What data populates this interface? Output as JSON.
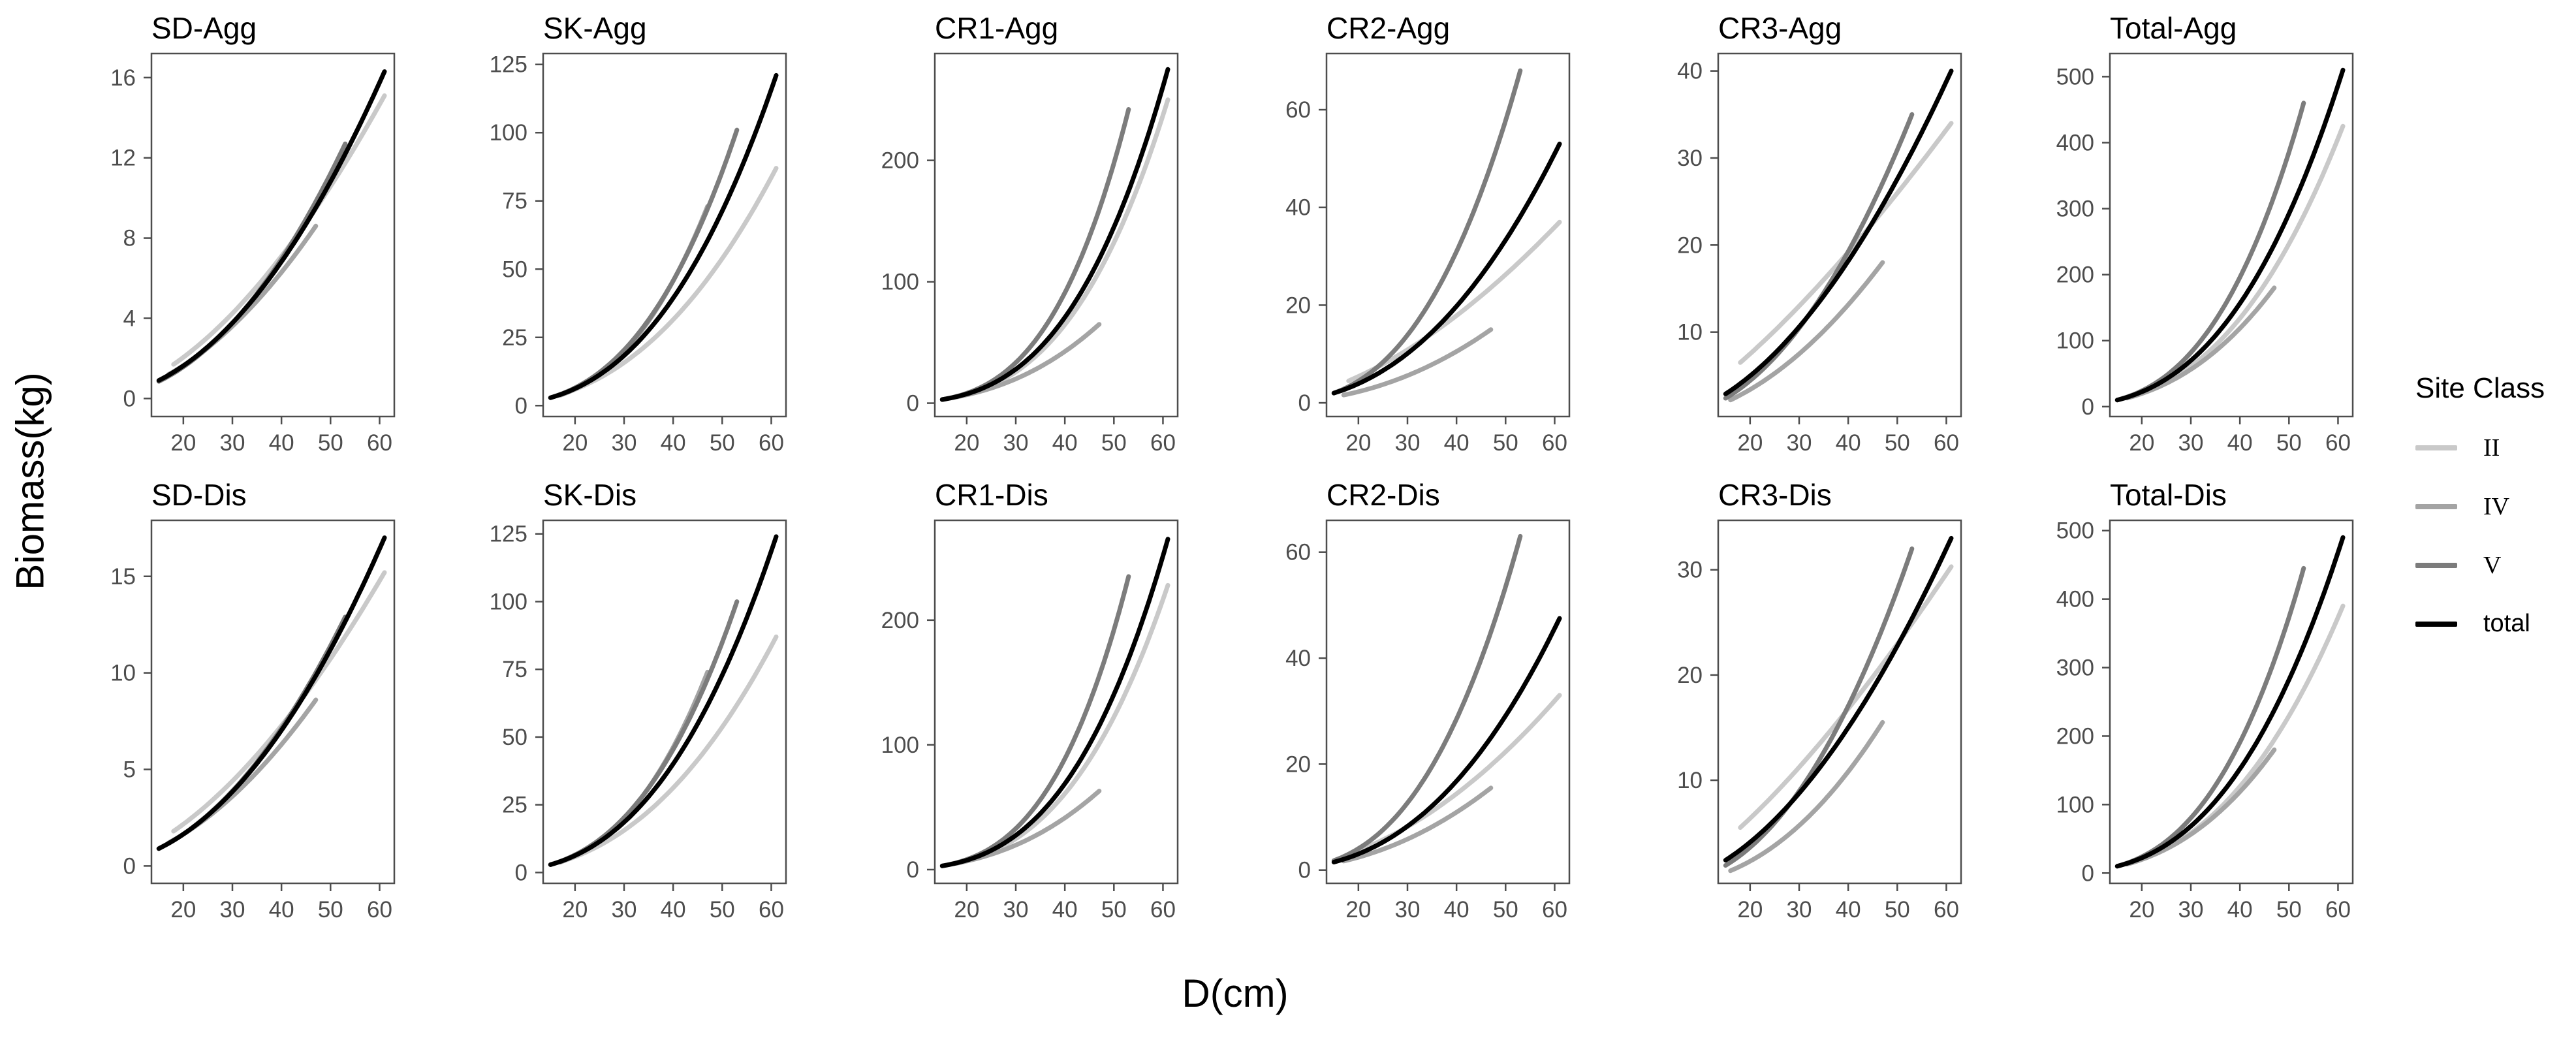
{
  "figure": {
    "y_axis_label": "Biomass(kg)",
    "x_axis_label": "D(cm)",
    "background": "#ffffff",
    "border_color": "#4d4d4d",
    "tick_label_color": "#4d4d4d"
  },
  "legend": {
    "title": "Site Class",
    "position": "right",
    "items": [
      {
        "label": "II",
        "color": "#c9c9c9"
      },
      {
        "label": "IV",
        "color": "#a4a4a4"
      },
      {
        "label": "V",
        "color": "#7c7c7c"
      },
      {
        "label": "total",
        "color": "#000000"
      }
    ]
  },
  "axes": {
    "x_ticks": [
      20,
      30,
      40,
      50,
      60
    ],
    "xlim": [
      13.5,
      63
    ],
    "grid": "off"
  },
  "chart_data": [
    {
      "title": "SD-Agg",
      "type": "line",
      "row": 0,
      "y_ticks": [
        0,
        4,
        8,
        12,
        16
      ],
      "ylim": [
        -0.9,
        17.2
      ],
      "series": [
        {
          "name": "II",
          "x": [
            18,
            61
          ],
          "y": [
            1.7,
            15.1
          ]
        },
        {
          "name": "IV",
          "x": [
            17,
            47
          ],
          "y": [
            1.2,
            8.6
          ]
        },
        {
          "name": "V",
          "x": [
            15,
            53
          ],
          "y": [
            0.85,
            12.7
          ]
        },
        {
          "name": "total",
          "x": [
            15,
            61
          ],
          "y": [
            0.9,
            16.3
          ]
        }
      ]
    },
    {
      "title": "SK-Agg",
      "type": "line",
      "row": 0,
      "y_ticks": [
        0,
        25,
        50,
        75,
        100,
        125
      ],
      "ylim": [
        -4,
        129
      ],
      "series": [
        {
          "name": "II",
          "x": [
            18,
            61
          ],
          "y": [
            4.6,
            87
          ]
        },
        {
          "name": "IV",
          "x": [
            17,
            47
          ],
          "y": [
            3.8,
            73
          ]
        },
        {
          "name": "V",
          "x": [
            15,
            53
          ],
          "y": [
            2.9,
            101
          ]
        },
        {
          "name": "total",
          "x": [
            15,
            61
          ],
          "y": [
            2.9,
            121
          ]
        }
      ]
    },
    {
      "title": "CR1-Agg",
      "type": "line",
      "row": 0,
      "y_ticks": [
        0,
        100,
        200
      ],
      "ylim": [
        -11,
        288
      ],
      "series": [
        {
          "name": "II",
          "x": [
            18,
            61
          ],
          "y": [
            5,
            250
          ]
        },
        {
          "name": "IV",
          "x": [
            17,
            47
          ],
          "y": [
            4.5,
            65
          ]
        },
        {
          "name": "V",
          "x": [
            15,
            53
          ],
          "y": [
            3,
            242
          ]
        },
        {
          "name": "total",
          "x": [
            15,
            61
          ],
          "y": [
            3,
            275
          ]
        }
      ]
    },
    {
      "title": "CR2-Agg",
      "type": "line",
      "row": 0,
      "y_ticks": [
        0,
        20,
        40,
        60
      ],
      "ylim": [
        -2.8,
        71.5
      ],
      "series": [
        {
          "name": "II",
          "x": [
            18,
            61
          ],
          "y": [
            4.5,
            37
          ]
        },
        {
          "name": "IV",
          "x": [
            17,
            47
          ],
          "y": [
            1.6,
            15
          ]
        },
        {
          "name": "V",
          "x": [
            15,
            53
          ],
          "y": [
            2,
            68
          ]
        },
        {
          "name": "total",
          "x": [
            15,
            61
          ],
          "y": [
            2,
            53
          ]
        }
      ]
    },
    {
      "title": "CR3-Agg",
      "type": "line",
      "row": 0,
      "y_ticks": [
        10,
        20,
        30,
        40
      ],
      "ylim": [
        0.3,
        42
      ],
      "series": [
        {
          "name": "II",
          "x": [
            18,
            61
          ],
          "y": [
            6.5,
            34
          ]
        },
        {
          "name": "IV",
          "x": [
            16,
            47
          ],
          "y": [
            2.2,
            18
          ]
        },
        {
          "name": "V",
          "x": [
            15,
            53
          ],
          "y": [
            2.4,
            35
          ]
        },
        {
          "name": "total",
          "x": [
            15,
            61
          ],
          "y": [
            2.9,
            40
          ]
        }
      ]
    },
    {
      "title": "Total-Agg",
      "type": "line",
      "row": 0,
      "y_ticks": [
        0,
        100,
        200,
        300,
        400,
        500
      ],
      "ylim": [
        -15,
        535
      ],
      "series": [
        {
          "name": "II",
          "x": [
            18,
            61
          ],
          "y": [
            15,
            425
          ]
        },
        {
          "name": "IV",
          "x": [
            17,
            47
          ],
          "y": [
            13,
            180
          ]
        },
        {
          "name": "V",
          "x": [
            15,
            53
          ],
          "y": [
            10,
            460
          ]
        },
        {
          "name": "total",
          "x": [
            15,
            61
          ],
          "y": [
            10,
            510
          ]
        }
      ]
    },
    {
      "title": "SD-Dis",
      "type": "line",
      "row": 1,
      "y_ticks": [
        0,
        5,
        10,
        15
      ],
      "ylim": [
        -0.9,
        17.9
      ],
      "series": [
        {
          "name": "II",
          "x": [
            18,
            61
          ],
          "y": [
            1.8,
            15.2
          ]
        },
        {
          "name": "IV",
          "x": [
            17,
            47
          ],
          "y": [
            1.2,
            8.6
          ]
        },
        {
          "name": "V",
          "x": [
            15,
            53
          ],
          "y": [
            0.9,
            12.9
          ]
        },
        {
          "name": "total",
          "x": [
            15,
            61
          ],
          "y": [
            0.9,
            17
          ]
        }
      ]
    },
    {
      "title": "SK-Dis",
      "type": "line",
      "row": 1,
      "y_ticks": [
        0,
        25,
        50,
        75,
        100,
        125
      ],
      "ylim": [
        -4,
        130
      ],
      "series": [
        {
          "name": "II",
          "x": [
            18,
            61
          ],
          "y": [
            4.5,
            87
          ]
        },
        {
          "name": "IV",
          "x": [
            17,
            47
          ],
          "y": [
            3.8,
            74
          ]
        },
        {
          "name": "V",
          "x": [
            15,
            53
          ],
          "y": [
            2.9,
            100
          ]
        },
        {
          "name": "total",
          "x": [
            15,
            61
          ],
          "y": [
            2.9,
            124
          ]
        }
      ]
    },
    {
      "title": "CR1-Dis",
      "type": "line",
      "row": 1,
      "y_ticks": [
        0,
        100,
        200
      ],
      "ylim": [
        -11,
        280
      ],
      "series": [
        {
          "name": "II",
          "x": [
            18,
            61
          ],
          "y": [
            5,
            228
          ]
        },
        {
          "name": "IV",
          "x": [
            17,
            47
          ],
          "y": [
            4.5,
            63
          ]
        },
        {
          "name": "V",
          "x": [
            15,
            53
          ],
          "y": [
            3,
            235
          ]
        },
        {
          "name": "total",
          "x": [
            15,
            61
          ],
          "y": [
            3,
            265
          ]
        }
      ]
    },
    {
      "title": "CR2-Dis",
      "type": "line",
      "row": 1,
      "y_ticks": [
        0,
        20,
        40,
        60
      ],
      "ylim": [
        -2.5,
        66
      ],
      "series": [
        {
          "name": "II",
          "x": [
            18,
            61
          ],
          "y": [
            3,
            33
          ]
        },
        {
          "name": "IV",
          "x": [
            17,
            47
          ],
          "y": [
            1.7,
            15.5
          ]
        },
        {
          "name": "V",
          "x": [
            15,
            53
          ],
          "y": [
            1.8,
            63
          ]
        },
        {
          "name": "total",
          "x": [
            15,
            61
          ],
          "y": [
            1.5,
            47.5
          ]
        }
      ]
    },
    {
      "title": "CR3-Dis",
      "type": "line",
      "row": 1,
      "y_ticks": [
        10,
        20,
        30
      ],
      "ylim": [
        0.2,
        34.7
      ],
      "series": [
        {
          "name": "II",
          "x": [
            18,
            61
          ],
          "y": [
            5.5,
            30.3
          ]
        },
        {
          "name": "IV",
          "x": [
            16,
            47
          ],
          "y": [
            1.4,
            15.5
          ]
        },
        {
          "name": "V",
          "x": [
            15,
            53
          ],
          "y": [
            1.9,
            32
          ]
        },
        {
          "name": "total",
          "x": [
            15,
            61
          ],
          "y": [
            2.4,
            33
          ]
        }
      ]
    },
    {
      "title": "Total-Dis",
      "type": "line",
      "row": 1,
      "y_ticks": [
        0,
        100,
        200,
        300,
        400,
        500
      ],
      "ylim": [
        -15,
        515
      ],
      "series": [
        {
          "name": "II",
          "x": [
            18,
            61
          ],
          "y": [
            15,
            390
          ]
        },
        {
          "name": "IV",
          "x": [
            17,
            47
          ],
          "y": [
            13,
            180
          ]
        },
        {
          "name": "V",
          "x": [
            15,
            53
          ],
          "y": [
            10,
            445
          ]
        },
        {
          "name": "total",
          "x": [
            15,
            61
          ],
          "y": [
            10,
            490
          ]
        }
      ]
    }
  ]
}
